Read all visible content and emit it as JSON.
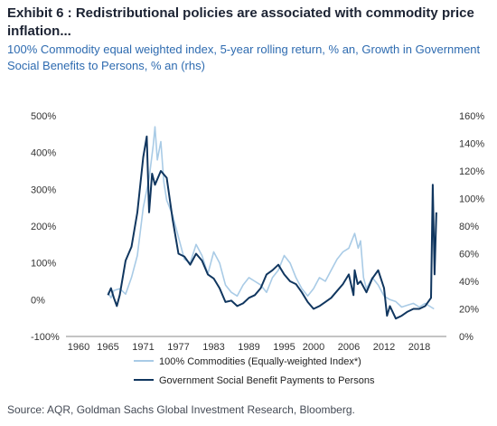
{
  "header": {
    "title": "Exhibit 6 : Redistributional policies are associated with commodity price inflation...",
    "subtitle": "100% Commodity equal weighted index, 5-year rolling return, % an, Growth in Government Social Benefits to Persons, % an (rhs)"
  },
  "footer": {
    "source": "Source: AQR, Goldman Sachs Global Investment Research, Bloomberg."
  },
  "colors": {
    "commodities": "#a9cbe6",
    "benefits": "#10365f",
    "axis": "#888888"
  },
  "chart_data": {
    "type": "line",
    "title": "",
    "xlabel": "",
    "ylabel": "",
    "xlim": [
      1960,
      2022
    ],
    "x_ticks": [
      "1960",
      "1965",
      "1971",
      "1977",
      "1983",
      "1989",
      "1995",
      "2000",
      "2006",
      "2012",
      "2018"
    ],
    "x_tick_values": [
      1960,
      1965,
      1971,
      1977,
      1983,
      1989,
      1995,
      2000,
      2006,
      2012,
      2018
    ],
    "ylim_left": [
      -100,
      500
    ],
    "y_ticks_left": [
      "-100%",
      "0%",
      "100%",
      "200%",
      "300%",
      "400%",
      "500%"
    ],
    "y_tick_values_left": [
      -100,
      0,
      100,
      200,
      300,
      400,
      500
    ],
    "ylim_right": [
      0,
      160
    ],
    "y_ticks_right": [
      "0%",
      "20%",
      "40%",
      "60%",
      "80%",
      "100%",
      "120%",
      "140%",
      "160%"
    ],
    "y_tick_values_right": [
      0,
      20,
      40,
      60,
      80,
      100,
      120,
      140,
      160
    ],
    "legend_position": "bottom-center",
    "grid": false,
    "series": [
      {
        "name": "100% Commodities (Equally-weighted Index*)",
        "axis": "left",
        "x": [
          1965,
          1965.5,
          1966,
          1967,
          1968,
          1969,
          1970,
          1971,
          1972,
          1972.7,
          1973,
          1973.4,
          1974,
          1974.5,
          1975,
          1976,
          1977,
          1978,
          1979,
          1980,
          1981,
          1982,
          1983,
          1984,
          1985,
          1986,
          1987,
          1988,
          1989,
          1990,
          1991,
          1992,
          1993,
          1994,
          1995,
          1996,
          1997,
          1998,
          1999,
          2000,
          2001,
          2002,
          2003,
          2004,
          2005,
          2006,
          2007,
          2007.6,
          2008,
          2008.5,
          2009,
          2010,
          2011,
          2012,
          2013,
          2014,
          2015,
          2016,
          2017,
          2018,
          2019,
          2020,
          2020.5
        ],
        "y": [
          20,
          5,
          25,
          30,
          15,
          60,
          120,
          250,
          330,
          420,
          470,
          380,
          430,
          320,
          270,
          230,
          170,
          110,
          100,
          150,
          120,
          70,
          130,
          100,
          40,
          20,
          10,
          40,
          60,
          50,
          40,
          20,
          60,
          80,
          120,
          100,
          60,
          30,
          10,
          30,
          60,
          50,
          80,
          110,
          130,
          140,
          180,
          140,
          160,
          60,
          30,
          60,
          40,
          10,
          0,
          -5,
          -20,
          -15,
          -10,
          -20,
          -10,
          -20,
          -25
        ]
      },
      {
        "name": "Government Social Benefit Payments to Persons",
        "axis": "right",
        "x": [
          1965,
          1965.5,
          1966,
          1966.5,
          1967,
          1968,
          1969,
          1970,
          1971,
          1971.6,
          1972,
          1972.5,
          1973,
          1974,
          1975,
          1976,
          1977,
          1978,
          1979,
          1980,
          1981,
          1982,
          1983,
          1984,
          1985,
          1986,
          1987,
          1988,
          1989,
          1990,
          1991,
          1992,
          1993,
          1994,
          1995,
          1996,
          1997,
          1998,
          1999,
          2000,
          2001,
          2002,
          2003,
          2004,
          2005,
          2006,
          2006.8,
          2007,
          2007.5,
          2008,
          2009,
          2010,
          2011,
          2012,
          2012.5,
          2013,
          2014,
          2015,
          2016,
          2017,
          2018,
          2019,
          2020,
          2020.3,
          2020.6,
          2020.9
        ],
        "y": [
          30,
          35,
          28,
          22,
          30,
          55,
          65,
          90,
          130,
          145,
          90,
          118,
          110,
          120,
          115,
          85,
          60,
          58,
          52,
          60,
          55,
          45,
          42,
          35,
          25,
          26,
          22,
          24,
          28,
          30,
          35,
          45,
          48,
          52,
          45,
          40,
          38,
          32,
          25,
          20,
          22,
          25,
          28,
          33,
          38,
          45,
          30,
          48,
          38,
          40,
          32,
          42,
          48,
          35,
          15,
          22,
          13,
          15,
          18,
          20,
          20,
          22,
          28,
          110,
          45,
          90
        ]
      }
    ]
  }
}
